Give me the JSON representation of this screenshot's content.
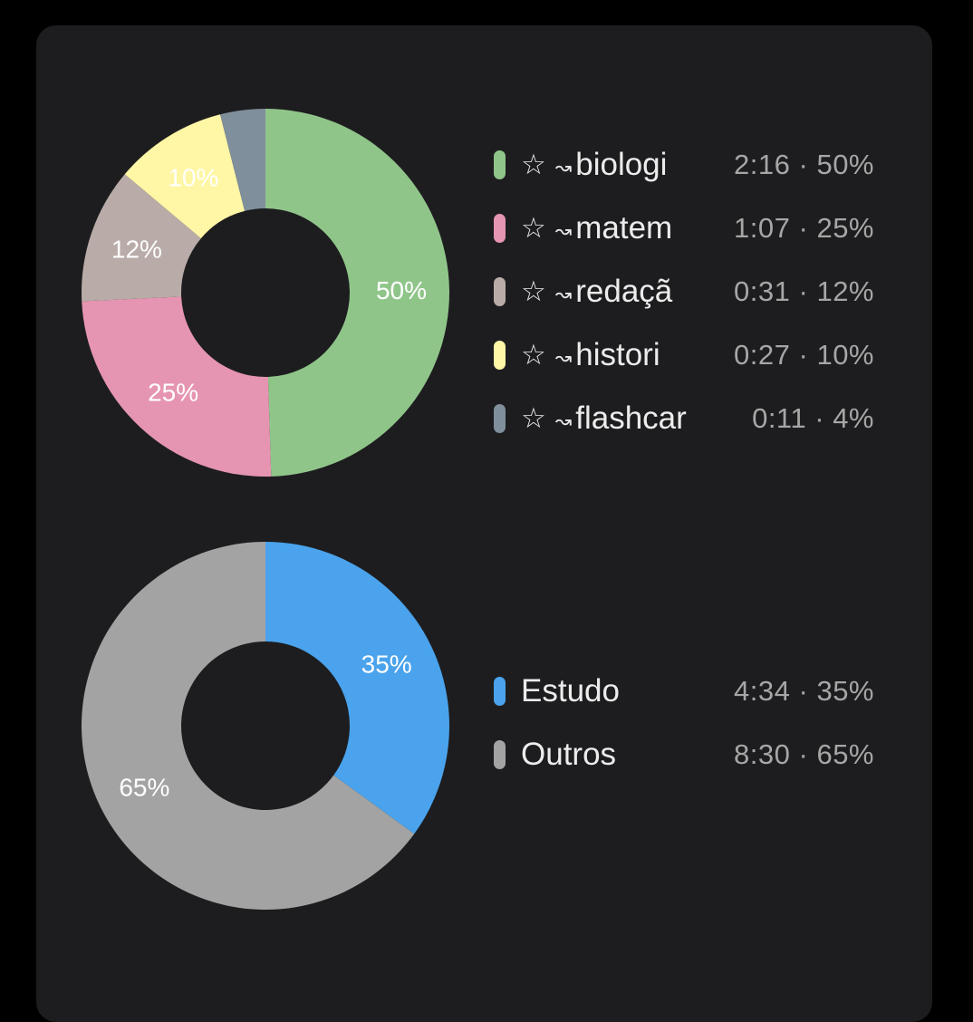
{
  "chart_data": [
    {
      "type": "pie",
      "donut": true,
      "start_angle_deg": 0,
      "categories": [
        "☆ ~biologi",
        "☆ ~matem",
        "☆ ~redaçã",
        "☆ ~histori",
        "☆ ~flashcar"
      ],
      "names": [
        "biologi",
        "matem",
        "redaçã",
        "histori",
        "flashcar"
      ],
      "values": [
        50,
        25,
        12,
        10,
        4
      ],
      "slice_labels": [
        "50%",
        "25%",
        "12%",
        "10%",
        ""
      ],
      "durations": [
        "2:16",
        "1:07",
        "0:31",
        "0:27",
        "0:11"
      ],
      "percent_labels": [
        "50%",
        "25%",
        "12%",
        "10%",
        "4%"
      ],
      "colors": [
        "#90c58a",
        "#e595b1",
        "#b9aca8",
        "#fff6a6",
        "#7f8f9c"
      ],
      "legend": "right",
      "label_icons": [
        "star-icon",
        "tilde-icon"
      ]
    },
    {
      "type": "pie",
      "donut": true,
      "start_angle_deg": 0,
      "categories": [
        "Estudo",
        "Outros"
      ],
      "names": [
        "Estudo",
        "Outros"
      ],
      "values": [
        35,
        65
      ],
      "slice_labels": [
        "35%",
        "65%"
      ],
      "durations": [
        "4:34",
        "8:30"
      ],
      "percent_labels": [
        "35%",
        "65%"
      ],
      "colors": [
        "#4aa3ec",
        "#a3a3a3"
      ],
      "legend": "right"
    }
  ],
  "separator": "·",
  "colors": {
    "background": "#000000",
    "card": "#1d1d1f",
    "text": "#ececec",
    "muted_text": "#a6a6a6"
  }
}
